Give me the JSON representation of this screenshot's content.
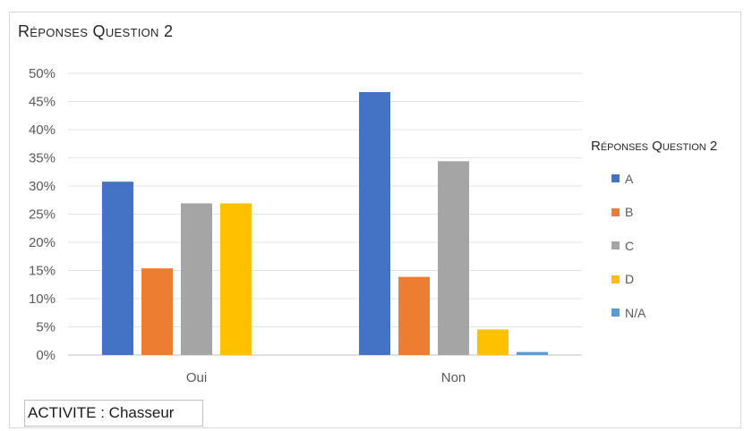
{
  "chart_data": {
    "type": "bar",
    "title": "Réponses Question 2",
    "categories": [
      "Oui",
      "Non"
    ],
    "series": [
      {
        "name": "A",
        "color": "#4472c4",
        "values": [
          30.77,
          46.67
        ]
      },
      {
        "name": "B",
        "color": "#ed7d31",
        "values": [
          15.38,
          13.87
        ]
      },
      {
        "name": "C",
        "color": "#a5a5a5",
        "values": [
          26.92,
          34.4
        ]
      },
      {
        "name": "D",
        "color": "#ffc000",
        "values": [
          26.92,
          4.53
        ]
      },
      {
        "name": "N/A",
        "color": "#5b9bd5",
        "values": [
          0,
          0.53
        ]
      }
    ],
    "ylim": [
      0,
      50
    ],
    "yticks": [
      "0%",
      "5%",
      "10%",
      "15%",
      "20%",
      "25%",
      "30%",
      "35%",
      "40%",
      "45%",
      "50%"
    ],
    "xlabel": "",
    "ylabel": "",
    "grid": true,
    "legend_title": "Réponses Question 2",
    "legend_position": "right"
  },
  "footer": {
    "label": "ACTIVITE : Chasseur"
  }
}
